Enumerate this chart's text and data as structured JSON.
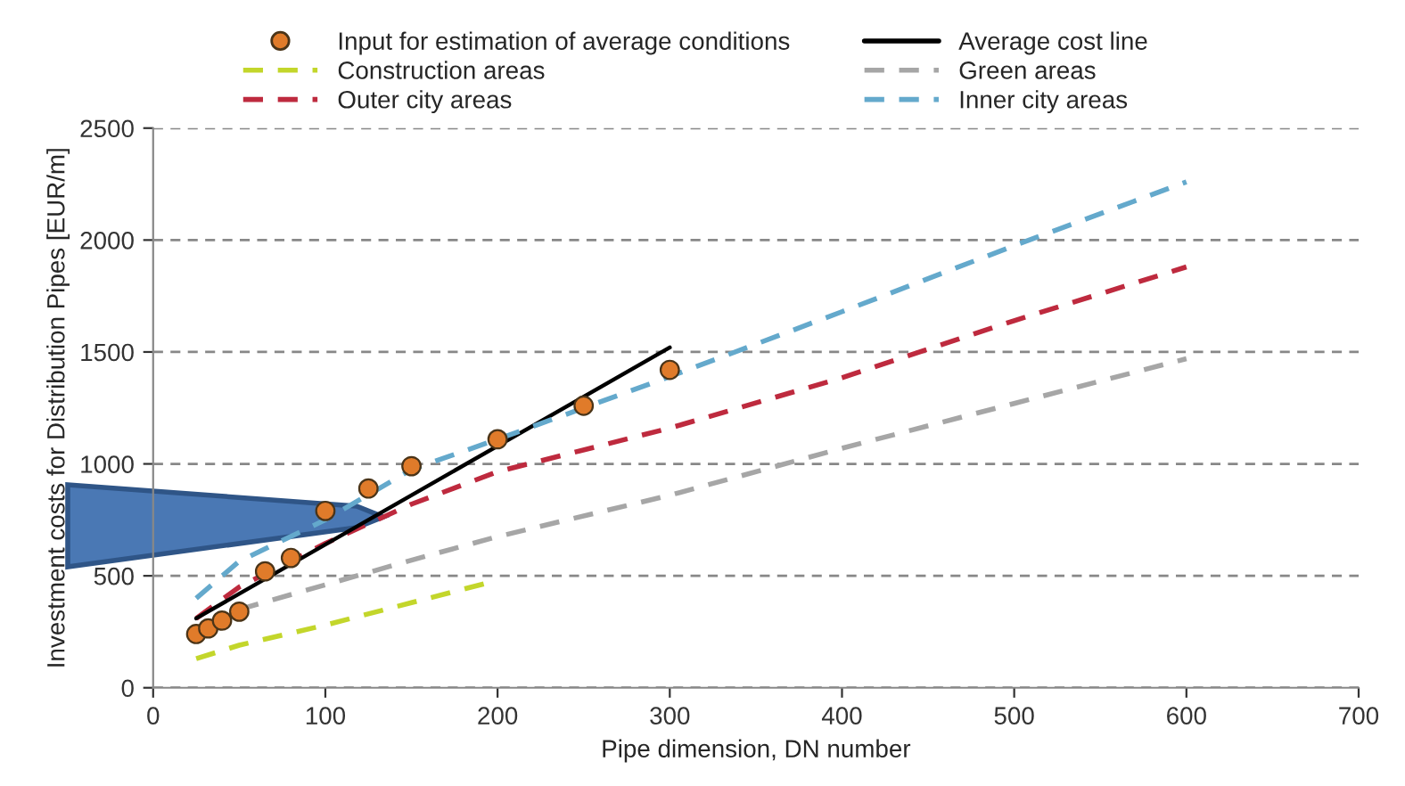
{
  "chart_data": {
    "type": "line",
    "xlabel": "Pipe dimension, DN number",
    "ylabel": "Investment costs for Distribution Pipes [EUR/m]",
    "xlim": [
      0,
      700
    ],
    "xticks": [
      0,
      100,
      200,
      300,
      400,
      500,
      600,
      700
    ],
    "ylim": [
      0,
      2500
    ],
    "yticks": [
      0,
      500,
      1000,
      1500,
      2000,
      2500
    ],
    "grid": "y",
    "legend": "top",
    "series": [
      {
        "name": "Input for estimation of average conditions",
        "type": "scatter",
        "marker": "circle",
        "color": "#e07b2a",
        "x": [
          25,
          32,
          40,
          50,
          65,
          80,
          100,
          125,
          150,
          200,
          250,
          300
        ],
        "values": [
          240,
          265,
          300,
          340,
          520,
          580,
          790,
          890,
          990,
          1110,
          1260,
          1420
        ]
      },
      {
        "name": "Construction areas",
        "line_style": "dashed",
        "color": "#c3d62b",
        "x": [
          25,
          50,
          100,
          150,
          195
        ],
        "values": [
          130,
          190,
          280,
          380,
          470
        ]
      },
      {
        "name": "Outer city areas",
        "line_style": "dashed",
        "color": "#be2a3e",
        "x": [
          25,
          50,
          100,
          150,
          200,
          300,
          400,
          500,
          600
        ],
        "values": [
          310,
          450,
          645,
          820,
          965,
          1160,
          1385,
          1640,
          1880
        ]
      },
      {
        "name": "Average cost line",
        "line_style": "solid",
        "color": "#000000",
        "x": [
          25,
          300
        ],
        "values": [
          310,
          1520
        ]
      },
      {
        "name": "Green areas",
        "line_style": "dashed",
        "color": "#a6a6a6",
        "x": [
          50,
          100,
          150,
          200,
          300,
          400,
          500,
          600
        ],
        "values": [
          350,
          460,
          570,
          675,
          860,
          1070,
          1270,
          1470
        ]
      },
      {
        "name": "Inner city areas",
        "line_style": "dashed",
        "color": "#64a9cc",
        "x": [
          25,
          50,
          100,
          150,
          200,
          300,
          400,
          500,
          600
        ],
        "values": [
          400,
          565,
          750,
          975,
          1110,
          1390,
          1680,
          1975,
          2260
        ]
      }
    ]
  }
}
